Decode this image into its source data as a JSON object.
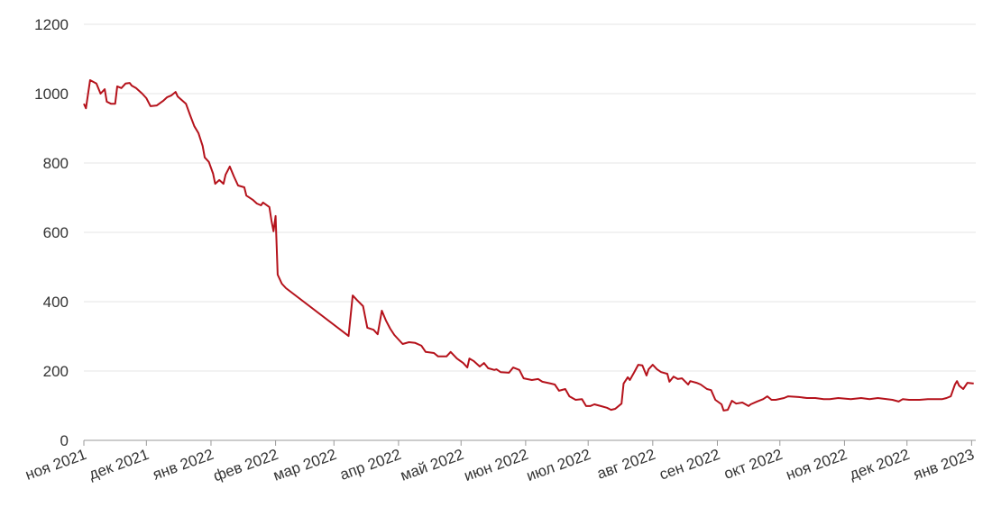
{
  "chart_data": {
    "type": "line",
    "x": [
      "2021-11-01",
      "2021-11-02",
      "2021-11-04",
      "2021-11-07",
      "2021-11-09",
      "2021-11-11",
      "2021-11-12",
      "2021-11-14",
      "2021-11-16",
      "2021-11-17",
      "2021-11-19",
      "2021-11-21",
      "2021-11-23",
      "2021-11-24",
      "2021-11-26",
      "2021-11-29",
      "2021-12-01",
      "2021-12-03",
      "2021-12-06",
      "2021-12-09",
      "2021-12-11",
      "2021-12-13",
      "2021-12-15",
      "2021-12-16",
      "2021-12-20",
      "2021-12-22",
      "2021-12-24",
      "2021-12-26",
      "2021-12-28",
      "2021-12-29",
      "2021-12-31",
      "2022-01-02",
      "2022-01-03",
      "2022-01-05",
      "2022-01-07",
      "2022-01-08",
      "2022-01-10",
      "2022-01-12",
      "2022-01-14",
      "2022-01-17",
      "2022-01-18",
      "2022-01-21",
      "2022-01-23",
      "2022-01-25",
      "2022-01-26",
      "2022-01-29",
      "2022-01-30",
      "2022-01-31",
      "2022-02-01",
      "2022-02-02",
      "2022-02-04",
      "2022-02-06",
      "2022-03-08",
      "2022-03-10",
      "2022-03-12",
      "2022-03-15",
      "2022-03-17",
      "2022-03-20",
      "2022-03-22",
      "2022-03-24",
      "2022-03-26",
      "2022-03-28",
      "2022-03-30",
      "2022-04-01",
      "2022-04-03",
      "2022-04-06",
      "2022-04-09",
      "2022-04-12",
      "2022-04-14",
      "2022-04-18",
      "2022-04-20",
      "2022-04-24",
      "2022-04-26",
      "2022-04-29",
      "2022-05-02",
      "2022-05-04",
      "2022-05-05",
      "2022-05-07",
      "2022-05-10",
      "2022-05-12",
      "2022-05-14",
      "2022-05-17",
      "2022-05-18",
      "2022-05-20",
      "2022-05-24",
      "2022-05-26",
      "2022-05-29",
      "2022-05-31",
      "2022-06-04",
      "2022-06-07",
      "2022-06-09",
      "2022-06-13",
      "2022-06-15",
      "2022-06-17",
      "2022-06-20",
      "2022-06-22",
      "2022-06-25",
      "2022-06-28",
      "2022-06-30",
      "2022-07-02",
      "2022-07-04",
      "2022-07-07",
      "2022-07-10",
      "2022-07-12",
      "2022-07-14",
      "2022-07-17",
      "2022-07-18",
      "2022-07-20",
      "2022-07-21",
      "2022-07-23",
      "2022-07-25",
      "2022-07-27",
      "2022-07-29",
      "2022-07-30",
      "2022-08-01",
      "2022-08-03",
      "2022-08-05",
      "2022-08-08",
      "2022-08-09",
      "2022-08-11",
      "2022-08-13",
      "2022-08-15",
      "2022-08-18",
      "2022-08-19",
      "2022-08-22",
      "2022-08-24",
      "2022-08-27",
      "2022-08-29",
      "2022-08-31",
      "2022-09-03",
      "2022-09-04",
      "2022-09-06",
      "2022-09-08",
      "2022-09-10",
      "2022-09-13",
      "2022-09-16",
      "2022-09-17",
      "2022-09-20",
      "2022-09-23",
      "2022-09-25",
      "2022-09-27",
      "2022-09-29",
      "2022-10-03",
      "2022-10-05",
      "2022-10-10",
      "2022-10-14",
      "2022-10-18",
      "2022-10-22",
      "2022-10-25",
      "2022-10-29",
      "2022-11-04",
      "2022-11-09",
      "2022-11-13",
      "2022-11-17",
      "2022-11-24",
      "2022-11-27",
      "2022-11-29",
      "2022-12-02",
      "2022-12-07",
      "2022-12-11",
      "2022-12-18",
      "2022-12-20",
      "2022-12-22",
      "2022-12-24",
      "2022-12-25",
      "2022-12-26",
      "2022-12-28",
      "2022-12-30",
      "2023-01-02"
    ],
    "series": [
      {
        "color": "#b5121b",
        "values": [
          971,
          958,
          1039,
          1029,
          1000,
          1013,
          977,
          971,
          971,
          1021,
          1016,
          1029,
          1031,
          1023,
          1016,
          1000,
          987,
          964,
          966,
          979,
          990,
          995,
          1005,
          992,
          971,
          938,
          906,
          886,
          849,
          816,
          803,
          769,
          740,
          751,
          740,
          766,
          790,
          761,
          735,
          730,
          706,
          694,
          683,
          678,
          686,
          673,
          634,
          603,
          647,
          478,
          452,
          439,
          301,
          418,
          405,
          387,
          325,
          319,
          306,
          374,
          345,
          322,
          304,
          291,
          278,
          283,
          281,
          273,
          255,
          252,
          242,
          242,
          255,
          236,
          223,
          210,
          236,
          229,
          213,
          223,
          208,
          203,
          205,
          197,
          195,
          210,
          203,
          179,
          174,
          177,
          169,
          164,
          161,
          143,
          148,
          127,
          117,
          119,
          99,
          99,
          104,
          99,
          94,
          88,
          91,
          106,
          164,
          182,
          174,
          195,
          218,
          216,
          187,
          205,
          218,
          205,
          197,
          192,
          169,
          184,
          177,
          179,
          161,
          171,
          166,
          161,
          148,
          145,
          117,
          104,
          86,
          88,
          114,
          106,
          109,
          99,
          104,
          112,
          119,
          127,
          117,
          117,
          122,
          127,
          125,
          122,
          122,
          119,
          119,
          122,
          119,
          122,
          119,
          122,
          117,
          112,
          119,
          117,
          117,
          119,
          119,
          122,
          127,
          161,
          171,
          158,
          148,
          166,
          164
        ]
      }
    ],
    "xlim": [
      "2021-11-01",
      "2023-01-03"
    ],
    "xticks": [
      {
        "value": "2021-11-01",
        "label": "ноя 2021"
      },
      {
        "value": "2021-12-01",
        "label": "дек 2021"
      },
      {
        "value": "2022-01-01",
        "label": "янв 2022"
      },
      {
        "value": "2022-02-01",
        "label": "фев 2022"
      },
      {
        "value": "2022-03-01",
        "label": "мар 2022"
      },
      {
        "value": "2022-04-01",
        "label": "апр 2022"
      },
      {
        "value": "2022-05-01",
        "label": "май 2022"
      },
      {
        "value": "2022-06-01",
        "label": "июн 2022"
      },
      {
        "value": "2022-07-01",
        "label": "июл 2022"
      },
      {
        "value": "2022-08-01",
        "label": "авг 2022"
      },
      {
        "value": "2022-09-01",
        "label": "сен 2022"
      },
      {
        "value": "2022-10-01",
        "label": "окт 2022"
      },
      {
        "value": "2022-11-01",
        "label": "ноя 2022"
      },
      {
        "value": "2022-12-01",
        "label": "дек 2022"
      },
      {
        "value": "2023-01-01",
        "label": "янв 2023"
      }
    ],
    "ylim": [
      0,
      1200
    ],
    "yticks": [
      0,
      200,
      400,
      600,
      800,
      1000,
      1200
    ],
    "grid": true
  }
}
